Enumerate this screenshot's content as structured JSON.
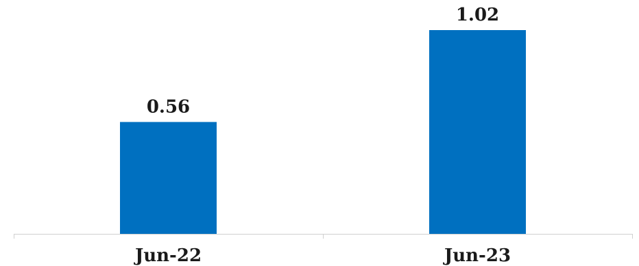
{
  "chart_data": {
    "type": "bar",
    "categories": [
      "Jun-22",
      "Jun-23"
    ],
    "values": [
      0.56,
      1.02
    ],
    "value_labels": [
      "0.56",
      "1.02"
    ],
    "title": "",
    "xlabel": "",
    "ylabel": "",
    "ylim": [
      0,
      1.02
    ],
    "grid": false,
    "legend": "none",
    "bar_color": "#0070C0"
  }
}
